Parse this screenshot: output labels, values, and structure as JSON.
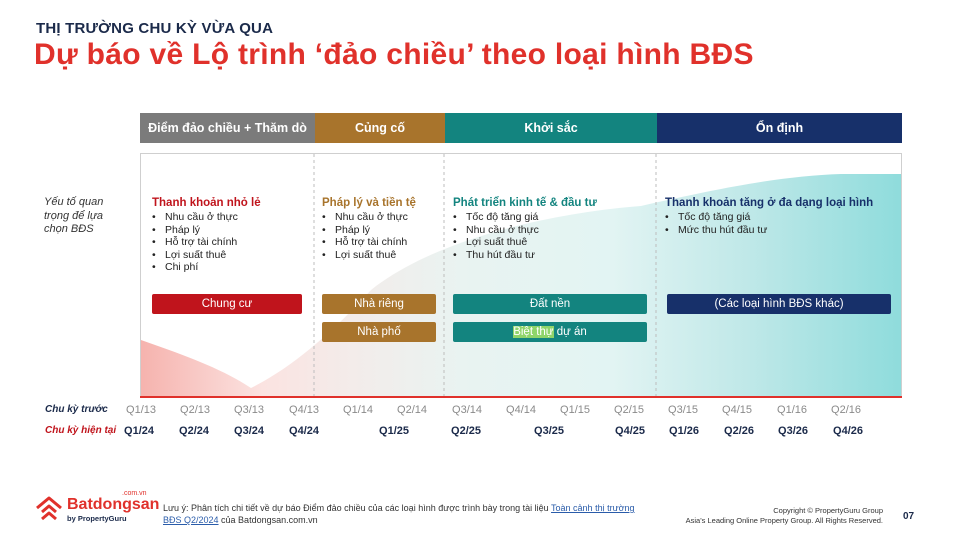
{
  "header": {
    "kicker": "THỊ TRƯỜNG CHU KỲ VỪA QUA",
    "title": "Dự báo về Lộ trình ‘đảo chiều’ theo loại hình BĐS"
  },
  "phases": [
    {
      "label": "Điểm đảo chiều + Thăm dò",
      "color": "#7b7b7b"
    },
    {
      "label": "Củng cố",
      "color": "#a8742c"
    },
    {
      "label": "Khởi sắc",
      "color": "#13847f"
    },
    {
      "label": "Ổn định",
      "color": "#17306a"
    }
  ],
  "side_label": "Yếu tố quan trọng để lựa chọn BĐS",
  "columns": [
    {
      "title": "Thanh khoản nhỏ lẻ",
      "color": "#c0141c",
      "items": [
        "Nhu cầu ở thực",
        "Pháp lý",
        "Hỗ trợ tài chính",
        "Lợi suất thuê",
        "Chi phí"
      ]
    },
    {
      "title": "Pháp lý và tiền tệ",
      "color": "#a8742c",
      "items": [
        "Nhu cầu ở thực",
        "Pháp lý",
        "Hỗ trợ tài chính",
        "Lợi suất thuê"
      ]
    },
    {
      "title": "Phát triển kinh tế & đầu tư",
      "color": "#13847f",
      "items": [
        "Tốc độ tăng giá",
        "Nhu cầu ở thực",
        "Lợi suất thuê",
        "Thu hút đầu tư"
      ]
    },
    {
      "title": "Thanh khoản tăng ở đa dạng loại hình",
      "color": "#17306a",
      "items": [
        "Tốc độ tăng giá",
        "Mức thu hút đầu tư"
      ]
    }
  ],
  "tags": {
    "chung_cu": "Chung cư",
    "nha_rieng": "Nhà riêng",
    "nha_pho": "Nhà phố",
    "dat_nen": "Đất nền",
    "biet_thu_hl": "Biệt thự",
    "biet_thu_rest": " dự án",
    "khac": "(Các loại hình BĐS khác)"
  },
  "timeline": {
    "prev_label": "Chu kỳ trước",
    "curr_label": "Chu kỳ hiện tại",
    "prev_ticks": [
      "Q1/13",
      "Q2/13",
      "Q3/13",
      "Q4/13",
      "Q1/14",
      "Q2/14",
      "Q3/14",
      "Q4/14",
      "Q1/15",
      "Q2/15",
      "Q3/15",
      "Q4/15",
      "Q1/16",
      "Q2/16"
    ],
    "curr_ticks": [
      "Q1/24",
      "Q2/24",
      "Q3/24",
      "Q4/24",
      "Q1/25",
      "Q2/25",
      "Q3/25",
      "Q4/25",
      "Q1/26",
      "Q2/26",
      "Q3/26",
      "Q4/26"
    ],
    "prev_color": "#8a8a8a",
    "curr_label_color": "#c0141c"
  },
  "footer": {
    "logo_text": "Batdongsan",
    "logo_suffix": ".com.vn",
    "logo_sub": "by PropertyGuru",
    "note_prefix": "Lưu ý: Phân tích chi tiết về dự báo Điểm đảo chiều của các loại hình được trình bày trong tài liệu ",
    "note_link": "Toàn cảnh thị trường BĐS Q2/2024",
    "note_suffix": " của Batdongsan.com.vn",
    "copyright_1": "Copyright © PropertyGuru Group",
    "copyright_2": "Asia's Leading Online Property Group. All Rights Reserved.",
    "page": "07"
  },
  "colors": {
    "brand_red": "#e0312b",
    "navy": "#1b2a4a",
    "chung_cu": "#c0141c",
    "gold": "#a8742c",
    "teal": "#13847f",
    "dark_navy": "#17306a"
  }
}
